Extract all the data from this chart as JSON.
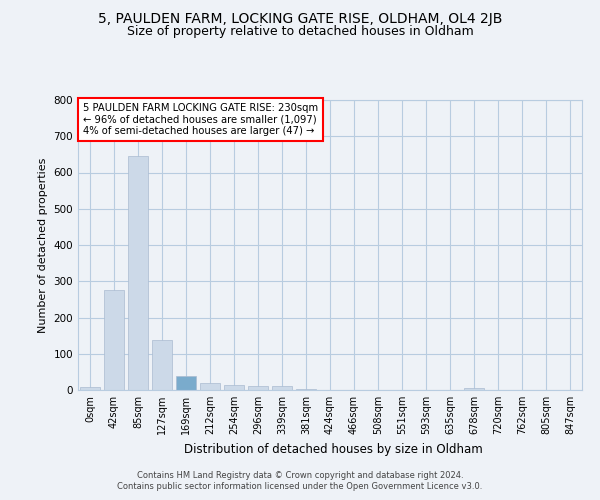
{
  "title1": "5, PAULDEN FARM, LOCKING GATE RISE, OLDHAM, OL4 2JB",
  "title2": "Size of property relative to detached houses in Oldham",
  "xlabel": "Distribution of detached houses by size in Oldham",
  "ylabel": "Number of detached properties",
  "bar_color": "#ccd9e8",
  "bar_edge_color": "#aabbd0",
  "highlight_bar_index": 4,
  "highlight_color": "#7aabcc",
  "categories": [
    "0sqm",
    "42sqm",
    "85sqm",
    "127sqm",
    "169sqm",
    "212sqm",
    "254sqm",
    "296sqm",
    "339sqm",
    "381sqm",
    "424sqm",
    "466sqm",
    "508sqm",
    "551sqm",
    "593sqm",
    "635sqm",
    "678sqm",
    "720sqm",
    "762sqm",
    "805sqm",
    "847sqm"
  ],
  "values": [
    8,
    275,
    645,
    138,
    38,
    18,
    13,
    10,
    10,
    2,
    0,
    0,
    0,
    0,
    0,
    0,
    6,
    0,
    0,
    0,
    0
  ],
  "ylim": [
    0,
    800
  ],
  "yticks": [
    0,
    100,
    200,
    300,
    400,
    500,
    600,
    700,
    800
  ],
  "annotation_text": "5 PAULDEN FARM LOCKING GATE RISE: 230sqm\n← 96% of detached houses are smaller (1,097)\n4% of semi-detached houses are larger (47) →",
  "footer1": "Contains HM Land Registry data © Crown copyright and database right 2024.",
  "footer2": "Contains public sector information licensed under the Open Government Licence v3.0.",
  "bg_color": "#eef2f7",
  "plot_bg_color": "#eef2f7",
  "grid_color": "#b8cce0",
  "title_fontsize": 10,
  "subtitle_fontsize": 9,
  "tick_fontsize": 7,
  "ylabel_fontsize": 8,
  "xlabel_fontsize": 8.5
}
